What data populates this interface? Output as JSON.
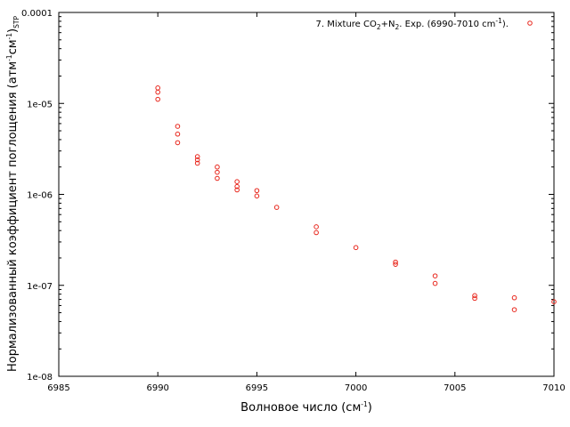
{
  "chart_data": {
    "type": "scatter",
    "title": "",
    "xlabel": {
      "text": "Волновое число (см",
      "sup": "-1",
      "tail": ")"
    },
    "ylabel": {
      "text": "Нормализованный коэффициент поглощения (атм",
      "sup1": "-1",
      "mid": "см",
      "sup2": "-1",
      "close": ")",
      "sub": "STP"
    },
    "xlim": [
      6985,
      7010
    ],
    "ylim": [
      1e-08,
      0.0001
    ],
    "yscale": "log",
    "grid": false,
    "legend_position": "top-right",
    "xticks": [
      {
        "value": 6985,
        "label": "6985"
      },
      {
        "value": 6990,
        "label": "6990"
      },
      {
        "value": 6995,
        "label": "6995"
      },
      {
        "value": 7000,
        "label": "7000"
      },
      {
        "value": 7005,
        "label": "7005"
      },
      {
        "value": 7010,
        "label": "7010"
      }
    ],
    "yticks": [
      {
        "value": 1e-08,
        "label": "1e-08"
      },
      {
        "value": 1e-07,
        "label": "1e-07"
      },
      {
        "value": 1e-06,
        "label": "1e-06"
      },
      {
        "value": 1e-05,
        "label": "1e-05"
      },
      {
        "value": 0.0001,
        "label": "0.0001"
      }
    ],
    "series": [
      {
        "name": "7. Mixture CO2+N2. Exp. (6990-7010 cm-1).",
        "legend_parts": {
          "pre": "7. Mixture CO",
          "sub1": "2",
          "mid": "+N",
          "sub2": "2",
          "post": ". Exp. (6990-7010 cm",
          "sup": "-1",
          "end": ")."
        },
        "color": "#e8261c",
        "marker": "open-circle",
        "points": [
          {
            "x": 6990.0,
            "y": 1.48e-05
          },
          {
            "x": 6990.0,
            "y": 1.33e-05
          },
          {
            "x": 6990.0,
            "y": 1.11e-05
          },
          {
            "x": 6991.0,
            "y": 5.6e-06
          },
          {
            "x": 6991.0,
            "y": 4.6e-06
          },
          {
            "x": 6991.0,
            "y": 3.7e-06
          },
          {
            "x": 6992.0,
            "y": 2.6e-06
          },
          {
            "x": 6992.0,
            "y": 2.4e-06
          },
          {
            "x": 6992.0,
            "y": 2.2e-06
          },
          {
            "x": 6993.0,
            "y": 2e-06
          },
          {
            "x": 6993.0,
            "y": 1.75e-06
          },
          {
            "x": 6993.0,
            "y": 1.5e-06
          },
          {
            "x": 6994.0,
            "y": 1.38e-06
          },
          {
            "x": 6994.0,
            "y": 1.22e-06
          },
          {
            "x": 6994.0,
            "y": 1.12e-06
          },
          {
            "x": 6995.0,
            "y": 1.1e-06
          },
          {
            "x": 6995.0,
            "y": 9.6e-07
          },
          {
            "x": 6996.0,
            "y": 7.2e-07
          },
          {
            "x": 6998.0,
            "y": 4.4e-07
          },
          {
            "x": 6998.0,
            "y": 3.8e-07
          },
          {
            "x": 7000.0,
            "y": 2.6e-07
          },
          {
            "x": 7002.0,
            "y": 1.8e-07
          },
          {
            "x": 7002.0,
            "y": 1.7e-07
          },
          {
            "x": 7004.0,
            "y": 1.27e-07
          },
          {
            "x": 7004.0,
            "y": 1.05e-07
          },
          {
            "x": 7006.0,
            "y": 7.7e-08
          },
          {
            "x": 7006.0,
            "y": 7.2e-08
          },
          {
            "x": 7008.0,
            "y": 7.3e-08
          },
          {
            "x": 7008.0,
            "y": 5.4e-08
          },
          {
            "x": 7010.0,
            "y": 6.6e-08
          }
        ]
      }
    ]
  }
}
